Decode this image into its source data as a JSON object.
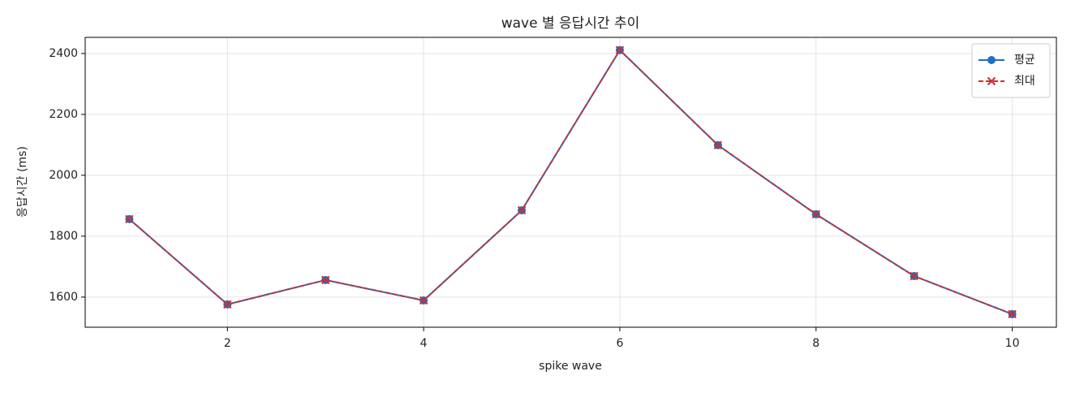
{
  "chart_data": {
    "type": "line",
    "title": "wave 별 응답시간 추이",
    "xlabel": "spike wave",
    "ylabel": "응답시간 (ms)",
    "x": [
      1,
      2,
      3,
      4,
      5,
      6,
      7,
      8,
      9,
      10
    ],
    "series": [
      {
        "name": "평균",
        "color": "#1f6fc4",
        "marker": "o",
        "linestyle": "solid",
        "values": [
          1856,
          1576,
          1656,
          1589,
          1885,
          2411,
          2099,
          1872,
          1669,
          1544
        ]
      },
      {
        "name": "최대",
        "color": "#c83232",
        "marker": "x",
        "linestyle": "dashed",
        "values": [
          1856,
          1576,
          1656,
          1589,
          1885,
          2411,
          2099,
          1872,
          1669,
          1544
        ]
      }
    ],
    "xlim": [
      0.55,
      10.45
    ],
    "ylim": [
      1501,
      2453
    ],
    "xticks": [
      2,
      4,
      6,
      8,
      10
    ],
    "yticks": [
      1600,
      1800,
      2000,
      2200,
      2400
    ],
    "grid": true,
    "legend": "upper right"
  }
}
